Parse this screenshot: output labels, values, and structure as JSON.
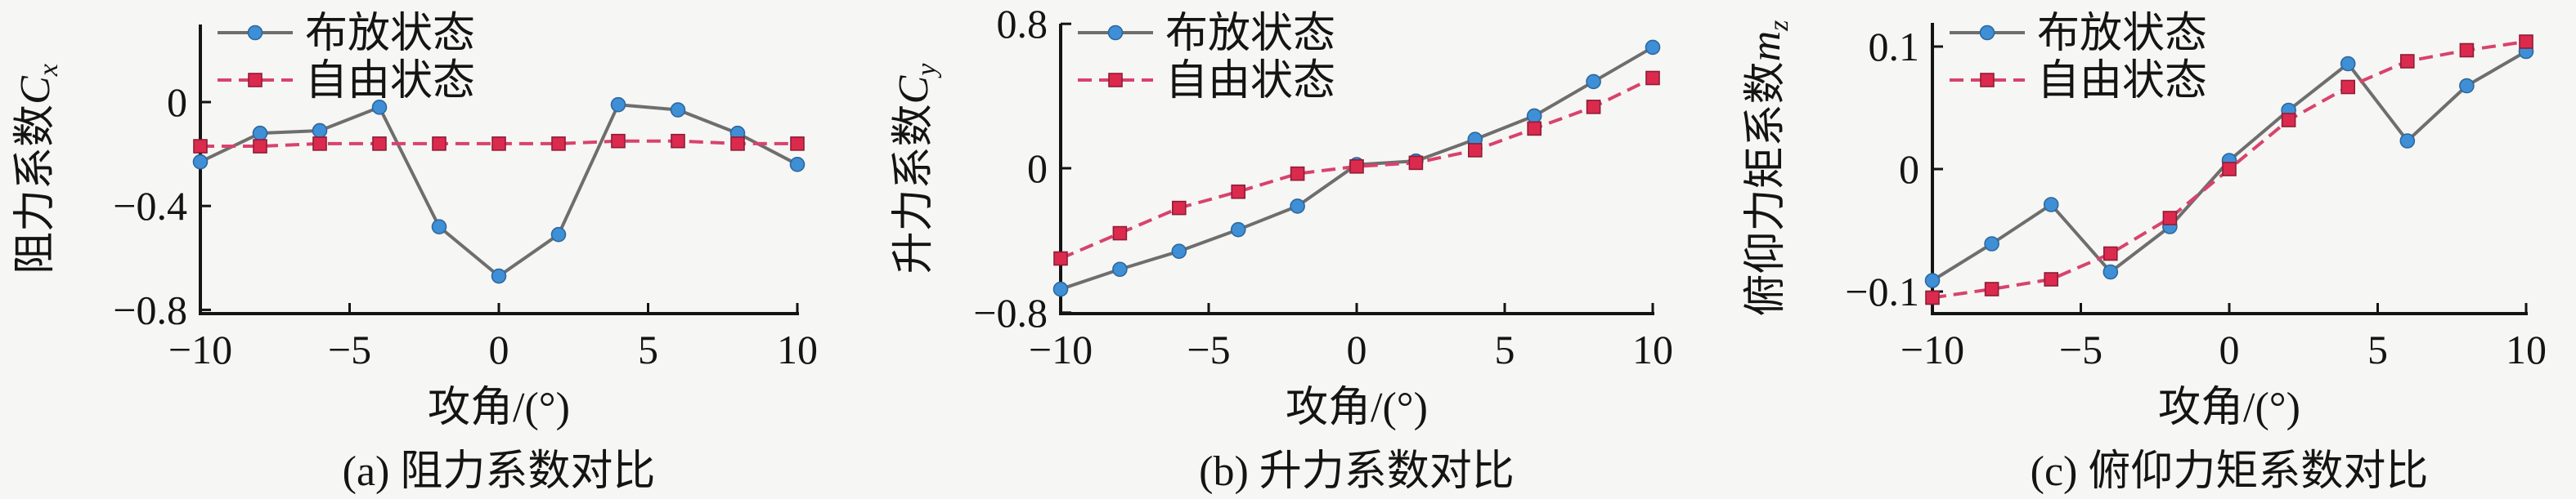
{
  "figure": {
    "background": "#f6f6f4",
    "axis_color": "#141414",
    "colors": {
      "series1_line": "#6e6e6e",
      "series1_marker": "#3f8fd6",
      "series1_marker_edge": "#2c689e",
      "series2_line": "#d8436b",
      "series2_marker": "#dc2a4e",
      "series2_marker_edge": "#8e1d35"
    },
    "legend": {
      "series1_label": "布放状态",
      "series2_label": "自由状态"
    },
    "xlabel": "攻角/(°)"
  },
  "chart_data": [
    {
      "type": "line",
      "panel": "a",
      "title": "(a) 阻力系数对比",
      "xlabel": "攻角/(°)",
      "ylabel": {
        "prefix": "阻力系数",
        "symbol": "C",
        "sub": "x"
      },
      "x": [
        -10,
        -8,
        -6,
        -4,
        -2,
        0,
        2,
        4,
        6,
        8,
        10
      ],
      "xticks": [
        {
          "value": -10,
          "label": "−10"
        },
        {
          "value": -5,
          "label": "−5"
        },
        {
          "value": 0,
          "label": "0"
        },
        {
          "value": 5,
          "label": "5"
        },
        {
          "value": 10,
          "label": "10"
        }
      ],
      "yticks": [
        {
          "value": 0,
          "label": "0"
        },
        {
          "value": -0.4,
          "label": "−0.4"
        },
        {
          "value": -0.8,
          "label": "−0.8"
        }
      ],
      "ylim": [
        -0.81,
        0.3
      ],
      "grid": false,
      "legend_position": "top-left",
      "series": [
        {
          "name": "布放状态",
          "marker": "circle",
          "line": "solid",
          "values": [
            -0.23,
            -0.12,
            -0.11,
            -0.02,
            -0.48,
            -0.67,
            -0.51,
            -0.01,
            -0.03,
            -0.12,
            -0.24
          ]
        },
        {
          "name": "自由状态",
          "marker": "square",
          "line": "dashed",
          "values": [
            -0.17,
            -0.17,
            -0.16,
            -0.16,
            -0.16,
            -0.16,
            -0.16,
            -0.15,
            -0.15,
            -0.16,
            -0.16
          ]
        }
      ]
    },
    {
      "type": "line",
      "panel": "b",
      "title": "(b) 升力系数对比",
      "xlabel": "攻角/(°)",
      "ylabel": {
        "prefix": "升力系数",
        "symbol": "C",
        "sub": "y"
      },
      "x": [
        -10,
        -8,
        -6,
        -4,
        -2,
        0,
        2,
        4,
        6,
        8,
        10
      ],
      "xticks": [
        {
          "value": -10,
          "label": "−10"
        },
        {
          "value": -5,
          "label": "−5"
        },
        {
          "value": 0,
          "label": "0"
        },
        {
          "value": 5,
          "label": "5"
        },
        {
          "value": 10,
          "label": "10"
        }
      ],
      "yticks": [
        {
          "value": 0.8,
          "label": "0.8"
        },
        {
          "value": 0,
          "label": "0"
        },
        {
          "value": -0.8,
          "label": "−0.8"
        }
      ],
      "ylim": [
        -0.81,
        0.8
      ],
      "grid": false,
      "legend_position": "top-left",
      "series": [
        {
          "name": "布放状态",
          "marker": "circle",
          "line": "solid",
          "values": [
            -0.67,
            -0.56,
            -0.46,
            -0.34,
            -0.21,
            0.02,
            0.04,
            0.16,
            0.29,
            0.48,
            0.67
          ]
        },
        {
          "name": "自由状态",
          "marker": "square",
          "line": "dashed",
          "values": [
            -0.5,
            -0.36,
            -0.22,
            -0.13,
            -0.03,
            0.01,
            0.03,
            0.1,
            0.22,
            0.34,
            0.5
          ]
        }
      ]
    },
    {
      "type": "line",
      "panel": "c",
      "title": "(c) 俯仰力矩系数对比",
      "xlabel": "攻角/(°)",
      "ylabel": {
        "prefix": "俯仰力矩系数",
        "symbol": "m",
        "sub": "z"
      },
      "x": [
        -10,
        -8,
        -6,
        -4,
        -2,
        0,
        2,
        4,
        6,
        8,
        10
      ],
      "xticks": [
        {
          "value": -10,
          "label": "−10"
        },
        {
          "value": -5,
          "label": "−5"
        },
        {
          "value": 0,
          "label": "0"
        },
        {
          "value": 5,
          "label": "5"
        },
        {
          "value": 10,
          "label": "10"
        }
      ],
      "yticks": [
        {
          "value": 0.1,
          "label": "0.1"
        },
        {
          "value": 0,
          "label": "0"
        },
        {
          "value": -0.1,
          "label": "−0.1"
        }
      ],
      "ylim": [
        -0.118,
        0.119
      ],
      "grid": false,
      "legend_position": "top-left",
      "series": [
        {
          "name": "布放状态",
          "marker": "circle",
          "line": "solid",
          "values": [
            -0.091,
            -0.061,
            -0.029,
            -0.084,
            -0.047,
            0.007,
            0.048,
            0.086,
            0.023,
            0.068,
            0.096
          ]
        },
        {
          "name": "自由状态",
          "marker": "square",
          "line": "dashed",
          "values": [
            -0.105,
            -0.098,
            -0.09,
            -0.069,
            -0.04,
            0.0,
            0.04,
            0.067,
            0.088,
            0.097,
            0.104
          ]
        }
      ]
    }
  ]
}
